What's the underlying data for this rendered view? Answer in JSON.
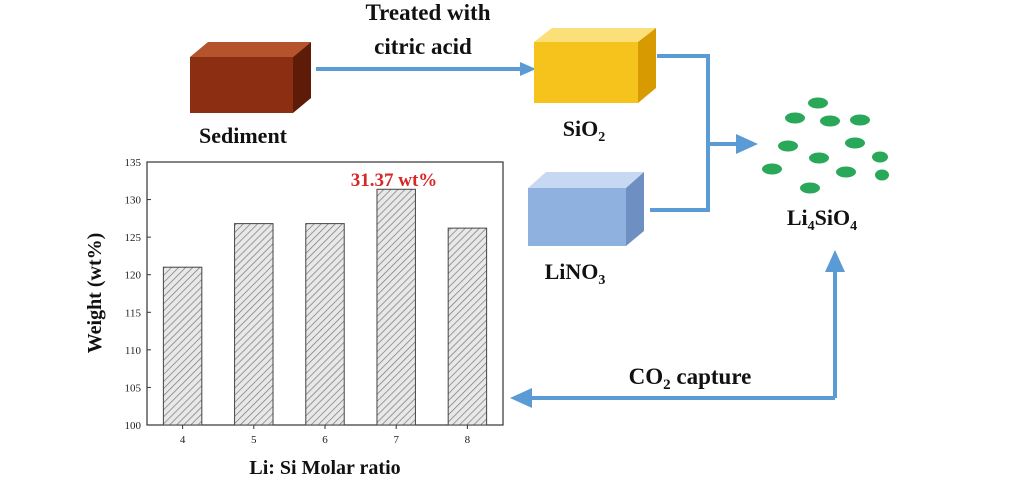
{
  "process": {
    "step_label_line1": "Treated with",
    "step_label_line2": "citric acid",
    "sediment_label": "Sediment",
    "sio2_label": {
      "main": "SiO",
      "sub": "2"
    },
    "lino3_label": {
      "main": "LiNO",
      "sub": "3"
    },
    "product_label": {
      "p1": "Li",
      "s1": "4",
      "p2": "SiO",
      "s2": "4"
    },
    "co2_label": {
      "p1": "CO",
      "s1": "2",
      "p2": " capture"
    }
  },
  "colors": {
    "sediment": "#8b2e12",
    "sio2": "#f6c21c",
    "lino3": "#8fb1e0",
    "arrow": "#5b9bd5",
    "particles": "#2aa85a",
    "highlight": "#d62728"
  },
  "chart_data": {
    "type": "bar",
    "categories": [
      "4",
      "5",
      "6",
      "7",
      "8"
    ],
    "values": [
      121,
      126.8,
      126.8,
      131.37,
      126.2
    ],
    "xlabel": "Li: Si Molar ratio",
    "ylabel": "Weight (wt%)",
    "ylim": [
      100,
      135
    ],
    "yticks": [
      "100",
      "105",
      "110",
      "115",
      "120",
      "125",
      "130",
      "135"
    ],
    "annotation": "31.37 wt%",
    "bar_fill": "hatched-gray"
  }
}
